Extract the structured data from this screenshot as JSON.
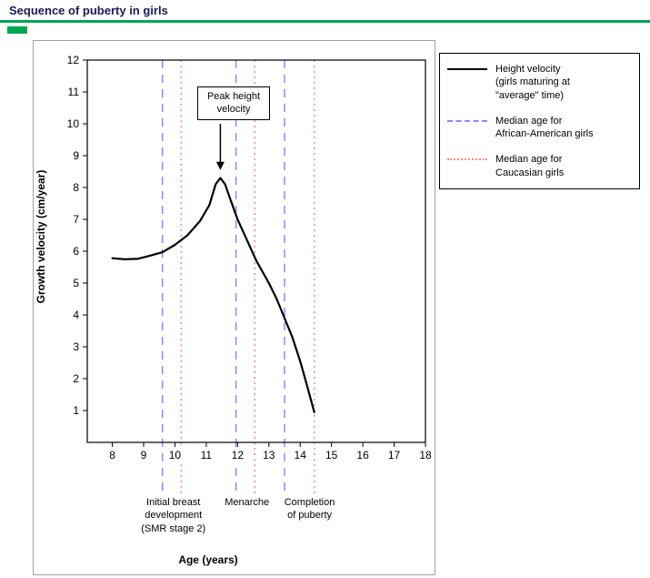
{
  "header": {
    "title": "Sequence of puberty in girls"
  },
  "colors": {
    "header_accent_green": "#00a651",
    "title_text": "#1a1a5a",
    "curve_black": "#000000",
    "african_american_blue": "#8888ff",
    "caucasian_red": "#ff8888",
    "panel_border_gray": "#a0a0a0"
  },
  "legend": {
    "items": [
      {
        "label": "Height velocity\n(girls maturing at\n\"average\" time)",
        "line_style": "solid",
        "color": "#000000"
      },
      {
        "label": "Median age for\nAfrican-American girls",
        "line_style": "dashed",
        "color": "#8888ff"
      },
      {
        "label": "Median age for\nCaucasian girls",
        "line_style": "dotted",
        "color": "#ff8888"
      }
    ]
  },
  "chart_data": {
    "type": "line",
    "title": "Sequence of puberty in girls",
    "xlabel": "Age (years)",
    "ylabel": "Growth velocity (cm/year)",
    "xlim": [
      7.2,
      18
    ],
    "ylim": [
      0,
      12
    ],
    "x_ticks": [
      8,
      9,
      10,
      11,
      12,
      13,
      14,
      15,
      16,
      17,
      18
    ],
    "y_ticks": [
      1,
      2,
      3,
      4,
      5,
      6,
      7,
      8,
      9,
      10,
      11,
      12
    ],
    "grid": false,
    "legend_position": "outside-right",
    "series": [
      {
        "name": "Height velocity (girls maturing at \"average\" time)",
        "color": "#000000",
        "points": [
          [
            8,
            5.78
          ],
          [
            8.4,
            5.75
          ],
          [
            8.8,
            5.76
          ],
          [
            9.2,
            5.86
          ],
          [
            9.6,
            5.97
          ],
          [
            10,
            6.2
          ],
          [
            10.4,
            6.5
          ],
          [
            10.8,
            6.95
          ],
          [
            11.1,
            7.45
          ],
          [
            11.3,
            8.1
          ],
          [
            11.45,
            8.3
          ],
          [
            11.6,
            8.1
          ],
          [
            11.8,
            7.55
          ],
          [
            12,
            7.0
          ],
          [
            12.3,
            6.35
          ],
          [
            12.6,
            5.7
          ],
          [
            13,
            5.0
          ],
          [
            13.25,
            4.5
          ],
          [
            13.5,
            3.9
          ],
          [
            13.75,
            3.3
          ],
          [
            14,
            2.55
          ],
          [
            14.2,
            1.85
          ],
          [
            14.45,
            0.95
          ]
        ]
      }
    ],
    "vlines": [
      {
        "label": "Median age for African-American girls",
        "style": "dashed",
        "color": "#8888ff",
        "ages": [
          9.6,
          11.95,
          13.5
        ]
      },
      {
        "label": "Median age for Caucasian girls",
        "style": "dotted",
        "color": "#ff8888",
        "ages": [
          10.2,
          12.55,
          14.45
        ]
      }
    ],
    "annotations": {
      "peak": {
        "label": "Peak height\nvelocity",
        "arrow_x": 11.45,
        "arrow_tip_y": 8.55
      },
      "milestones": [
        {
          "label": "Initial breast\ndevelopment\n(SMR stage 2)",
          "center_age": 9.95
        },
        {
          "label": "Menarche",
          "center_age": 12.3
        },
        {
          "label": "Completion\nof puberty",
          "center_age": 14.3
        }
      ]
    }
  }
}
